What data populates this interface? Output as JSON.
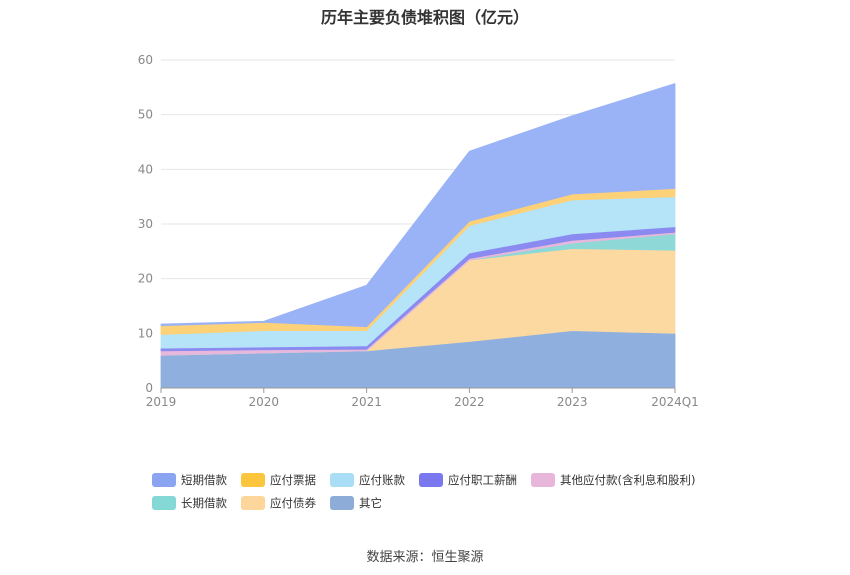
{
  "title": "历年主要负债堆积图（亿元）",
  "source": "数据来源：恒生聚源",
  "chart_data": {
    "type": "area",
    "stacked": true,
    "categories": [
      "2019",
      "2020",
      "2021",
      "2022",
      "2023",
      "2024Q1"
    ],
    "y_ticks": [
      "0",
      "10",
      "20",
      "30",
      "40",
      "50",
      "60"
    ],
    "ylim": [
      0,
      60
    ],
    "grid": true,
    "legend_position": "bottom",
    "series": [
      {
        "name": "其它",
        "color": "#8fb0de",
        "values": [
          6.0,
          6.4,
          6.8,
          8.5,
          10.5,
          10.0
        ]
      },
      {
        "name": "应付债券",
        "color": "#fcd9a0",
        "values": [
          0,
          0,
          0,
          14.9,
          15.0,
          15.2
        ]
      },
      {
        "name": "长期借款",
        "color": "#8ed9d8",
        "values": [
          0,
          0,
          0,
          0,
          1.0,
          3.0
        ]
      },
      {
        "name": "其他应付款(含利息和股利)",
        "color": "#e6b8db",
        "values": [
          0.8,
          0.6,
          0.3,
          0.3,
          0.5,
          0.3
        ]
      },
      {
        "name": "应付职工薪酬",
        "color": "#8a8af0",
        "values": [
          0.5,
          0.5,
          0.6,
          1.0,
          1.2,
          1.0
        ]
      },
      {
        "name": "应付账款",
        "color": "#b5e3f8",
        "values": [
          2.5,
          3.0,
          2.8,
          5.0,
          6.2,
          5.5
        ]
      },
      {
        "name": "应付票据",
        "color": "#fcd178",
        "values": [
          1.6,
          1.5,
          0.7,
          0.8,
          1.1,
          1.5
        ]
      },
      {
        "name": "短期借款",
        "color": "#9ab3f6",
        "values": [
          0.3,
          0.2,
          7.6,
          12.8,
          14.3,
          19.2
        ]
      }
    ]
  },
  "legend": {
    "row1": [
      {
        "name": "短期借款",
        "color": "#8aa4f2"
      },
      {
        "name": "应付票据",
        "color": "#fbc53e"
      },
      {
        "name": "应付账款",
        "color": "#a9def6"
      },
      {
        "name": "应付职工薪酬",
        "color": "#7a78ee"
      },
      {
        "name": "其他应付款(含利息和股利)",
        "color": "#e8b6da"
      }
    ],
    "row2": [
      {
        "name": "长期借款",
        "color": "#84d8d6"
      },
      {
        "name": "应付债券",
        "color": "#fcd69a"
      },
      {
        "name": "其它",
        "color": "#8eacd8"
      }
    ]
  }
}
